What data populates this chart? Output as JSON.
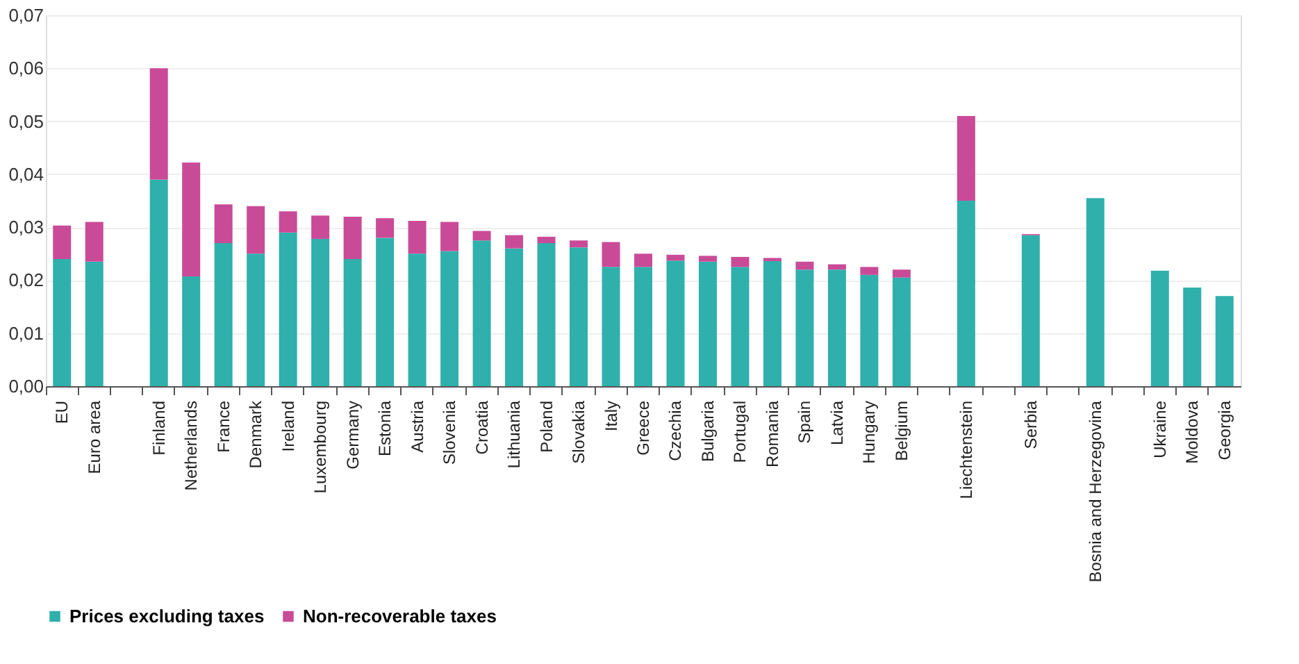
{
  "chart_data": {
    "type": "bar",
    "stacked": true,
    "categories": [
      "EU",
      "Euro area",
      null,
      "Finland",
      "Netherlands",
      "France",
      "Denmark",
      "Ireland",
      "Luxembourg",
      "Germany",
      "Estonia",
      "Austria",
      "Slovenia",
      "Croatia",
      "Lithuania",
      "Poland",
      "Slovakia",
      "Italy",
      "Greece",
      "Czechia",
      "Bulgaria",
      "Portugal",
      "Romania",
      "Spain",
      "Latvia",
      "Hungary",
      "Belgium",
      null,
      "Liechtenstein",
      null,
      "Serbia",
      null,
      "Bosnia and Herzegovina",
      null,
      "Ukraine",
      "Moldova",
      "Georgia"
    ],
    "series": [
      {
        "name": "Prices excluding taxes",
        "color": "#2fb0ac",
        "values": [
          0.024,
          0.0235,
          null,
          0.039,
          0.0207,
          0.027,
          0.025,
          0.029,
          0.0278,
          0.024,
          0.028,
          0.025,
          0.0255,
          0.0275,
          0.026,
          0.027,
          0.0262,
          0.0225,
          0.0225,
          0.0237,
          0.0235,
          0.0225,
          0.0236,
          0.022,
          0.022,
          0.021,
          0.0205,
          null,
          0.035,
          null,
          0.0285,
          null,
          0.0355,
          null,
          0.0218,
          0.0186,
          0.017
        ]
      },
      {
        "name": "Non-recoverable taxes",
        "color": "#c94b98",
        "values": [
          0.0063,
          0.0075,
          null,
          0.021,
          0.0215,
          0.0073,
          0.009,
          0.004,
          0.0044,
          0.008,
          0.0037,
          0.0062,
          0.0055,
          0.0018,
          0.0025,
          0.0012,
          0.0013,
          0.0047,
          0.0025,
          0.0011,
          0.0011,
          0.0019,
          0.0006,
          0.0015,
          0.001,
          0.0015,
          0.0015,
          null,
          0.016,
          null,
          0.0002,
          null,
          0,
          null,
          0,
          0,
          0
        ]
      }
    ],
    "ylim": [
      0,
      0.07
    ],
    "yticks": [
      {
        "value": 0,
        "label": "0,00"
      },
      {
        "value": 0.01,
        "label": "0,01"
      },
      {
        "value": 0.02,
        "label": "0,02"
      },
      {
        "value": 0.03,
        "label": "0,03"
      },
      {
        "value": 0.04,
        "label": "0,04"
      },
      {
        "value": 0.05,
        "label": "0,05"
      },
      {
        "value": 0.06,
        "label": "0,06"
      },
      {
        "value": 0.07,
        "label": "0,07"
      }
    ],
    "grid": "y",
    "legend": "bottom"
  }
}
